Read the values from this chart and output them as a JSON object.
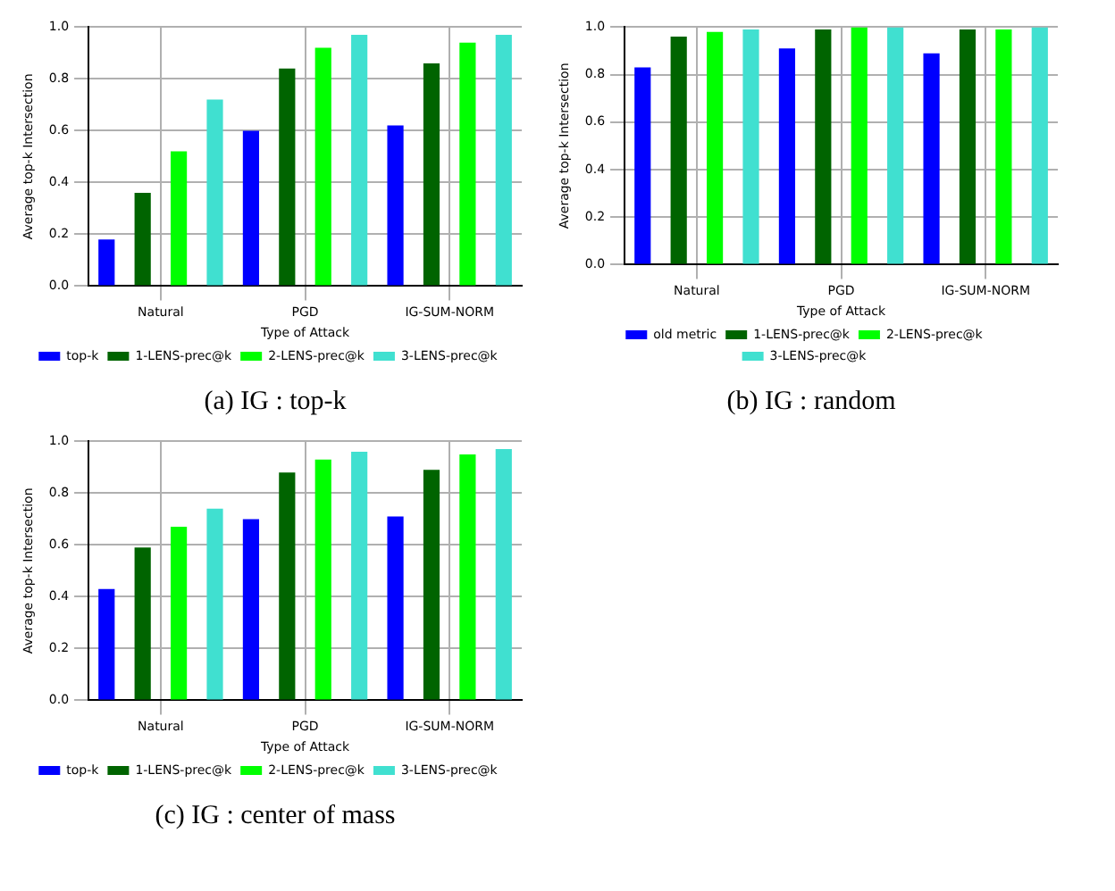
{
  "chart_data": [
    {
      "type": "bar",
      "xlabel": "Type of Attack",
      "ylabel": "Average top-k Intersection",
      "categories": [
        "Natural",
        "PGD",
        "IG-SUM-NORM"
      ],
      "ylim": [
        0,
        1
      ],
      "yticks": [
        {
          "value": 0,
          "label": "0.0"
        },
        {
          "value": 0.2,
          "label": "0.2"
        },
        {
          "value": 0.4,
          "label": "0.4"
        },
        {
          "value": 0.6,
          "label": "0.6"
        },
        {
          "value": 0.8,
          "label": "0.8"
        },
        {
          "value": 1,
          "label": "1.0"
        }
      ],
      "grid": true,
      "legend": "bottom",
      "annotations": [
        "(a) IG : top-k"
      ],
      "series": [
        {
          "name": "top-k",
          "color": "#0000ff",
          "values": [
            0.18,
            0.6,
            0.62
          ]
        },
        {
          "name": "1-LENS-prec@k",
          "color": "#006400",
          "values": [
            0.36,
            0.84,
            0.86
          ]
        },
        {
          "name": "2-LENS-prec@k",
          "color": "#00ff00",
          "values": [
            0.52,
            0.92,
            0.94
          ]
        },
        {
          "name": "3-LENS-prec@k",
          "color": "#40e0d0",
          "values": [
            0.72,
            0.97,
            0.97
          ]
        }
      ]
    },
    {
      "type": "bar",
      "xlabel": "Type of Attack",
      "ylabel": "Average top-k Intersection",
      "categories": [
        "Natural",
        "PGD",
        "IG-SUM-NORM"
      ],
      "ylim": [
        0,
        1
      ],
      "yticks": [
        {
          "value": 0,
          "label": "0.0"
        },
        {
          "value": 0.2,
          "label": "0.2"
        },
        {
          "value": 0.4,
          "label": "0.4"
        },
        {
          "value": 0.6,
          "label": "0.6"
        },
        {
          "value": 0.8,
          "label": "0.8"
        },
        {
          "value": 1,
          "label": "1.0"
        }
      ],
      "grid": true,
      "legend": "bottom",
      "annotations": [
        "(b) IG : random"
      ],
      "series": [
        {
          "name": "old metric",
          "color": "#0000ff",
          "values": [
            0.83,
            0.91,
            0.89
          ]
        },
        {
          "name": "1-LENS-prec@k",
          "color": "#006400",
          "values": [
            0.96,
            0.99,
            0.99
          ]
        },
        {
          "name": "2-LENS-prec@k",
          "color": "#00ff00",
          "values": [
            0.98,
            1.0,
            0.99
          ]
        },
        {
          "name": "3-LENS-prec@k",
          "color": "#40e0d0",
          "values": [
            0.99,
            1.0,
            1.0
          ]
        }
      ]
    },
    {
      "type": "bar",
      "xlabel": "Type of Attack",
      "ylabel": "Average top-k Intersection",
      "categories": [
        "Natural",
        "PGD",
        "IG-SUM-NORM"
      ],
      "ylim": [
        0,
        1
      ],
      "yticks": [
        {
          "value": 0,
          "label": "0.0"
        },
        {
          "value": 0.2,
          "label": "0.2"
        },
        {
          "value": 0.4,
          "label": "0.4"
        },
        {
          "value": 0.6,
          "label": "0.6"
        },
        {
          "value": 0.8,
          "label": "0.8"
        },
        {
          "value": 1,
          "label": "1.0"
        }
      ],
      "grid": true,
      "legend": "bottom",
      "annotations": [
        "(c) IG : center of mass"
      ],
      "series": [
        {
          "name": "top-k",
          "color": "#0000ff",
          "values": [
            0.43,
            0.7,
            0.71
          ]
        },
        {
          "name": "1-LENS-prec@k",
          "color": "#006400",
          "values": [
            0.59,
            0.88,
            0.89
          ]
        },
        {
          "name": "2-LENS-prec@k",
          "color": "#00ff00",
          "values": [
            0.67,
            0.93,
            0.95
          ]
        },
        {
          "name": "3-LENS-prec@k",
          "color": "#40e0d0",
          "values": [
            0.74,
            0.96,
            0.97
          ]
        }
      ]
    }
  ]
}
